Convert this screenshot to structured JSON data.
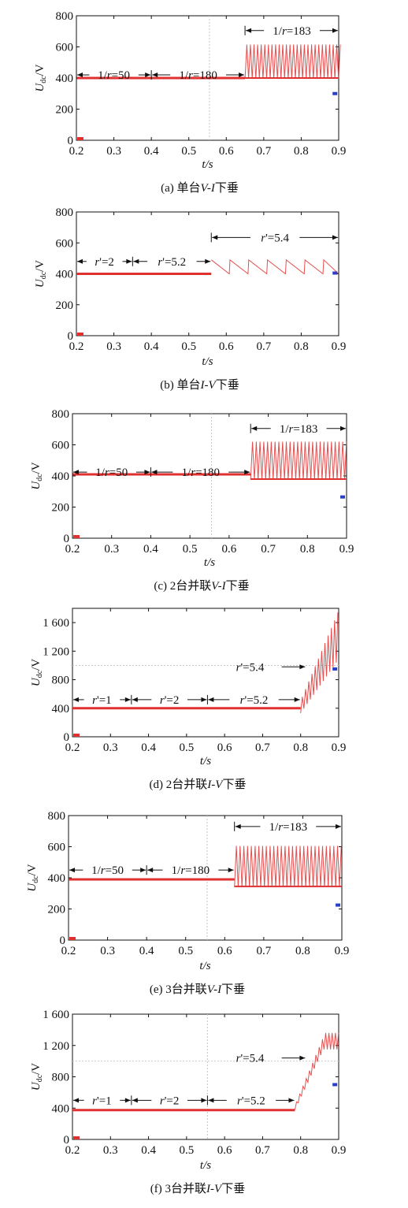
{
  "chart_data": [
    {
      "type": "line",
      "caption": "(a) 单台V-I下垂",
      "xlabel": "t/s",
      "ylabel": "Udc/V",
      "xlim": [
        0.2,
        0.9
      ],
      "ylim": [
        0,
        800
      ],
      "xticks": [
        "0.2",
        "0.3",
        "0.4",
        "0.5",
        "0.6",
        "0.7",
        "0.8",
        "0.9"
      ],
      "yticks": [
        "0",
        "200",
        "400",
        "600",
        "800"
      ],
      "series": [
        {
          "phases": [
            {
              "from": 0.2,
              "to": 0.65,
              "kind": "flat",
              "level": 400
            },
            {
              "from": 0.65,
              "to": 0.9,
              "kind": "oscillation",
              "low": 395,
              "high": 615,
              "period": 0.0096
            }
          ]
        }
      ],
      "annotations": [
        {
          "text": "1/r=50",
          "from": 0.2,
          "to": 0.4,
          "y": 420
        },
        {
          "text": "1/r=180",
          "from": 0.4,
          "to": 0.65,
          "y": 420
        },
        {
          "text": "1/r=183",
          "from": 0.65,
          "to": 0.9,
          "y": 705
        }
      ],
      "dashed_x": 0.555
    },
    {
      "type": "line",
      "caption": "(b) 单台I-V下垂",
      "xlabel": "t/s",
      "ylabel": "Udc/V",
      "xlim": [
        0.2,
        0.9
      ],
      "ylim": [
        0,
        800
      ],
      "xticks": [
        "0.2",
        "0.3",
        "0.4",
        "0.5",
        "0.6",
        "0.7",
        "0.8",
        "0.9"
      ],
      "yticks": [
        "0",
        "200",
        "400",
        "600",
        "800"
      ],
      "series": [
        {
          "phases": [
            {
              "from": 0.2,
              "to": 0.56,
              "kind": "flat",
              "level": 400
            },
            {
              "from": 0.56,
              "to": 0.9,
              "kind": "sawtooth",
              "low": 400,
              "high": 490,
              "period": 0.05
            }
          ]
        }
      ],
      "annotations": [
        {
          "text": "r'=2",
          "from": 0.2,
          "to": 0.35,
          "y": 480
        },
        {
          "text": "r'=5.2",
          "from": 0.35,
          "to": 0.56,
          "y": 480
        },
        {
          "text": "r'=5.4",
          "from": 0.56,
          "to": 0.9,
          "y": 635
        }
      ],
      "dashed_x": null
    },
    {
      "type": "line",
      "caption": "(c) 2台并联V-I下垂",
      "xlabel": "t/s",
      "ylabel": "Udc/V",
      "xlim": [
        0.2,
        0.9
      ],
      "ylim": [
        0,
        800
      ],
      "xticks": [
        "0.2",
        "0.3",
        "0.4",
        "0.5",
        "0.6",
        "0.7",
        "0.8",
        "0.9"
      ],
      "yticks": [
        "0",
        "200",
        "400",
        "600",
        "800"
      ],
      "series": [
        {
          "phases": [
            {
              "from": 0.2,
              "to": 0.655,
              "kind": "flat",
              "level": 410
            },
            {
              "from": 0.655,
              "to": 0.9,
              "kind": "oscillation",
              "low": 375,
              "high": 620,
              "period": 0.0096
            }
          ]
        }
      ],
      "annotations": [
        {
          "text": "1/r=50",
          "from": 0.2,
          "to": 0.4,
          "y": 425
        },
        {
          "text": "1/r=180",
          "from": 0.4,
          "to": 0.655,
          "y": 425
        },
        {
          "text": "1/r=183",
          "from": 0.655,
          "to": 0.9,
          "y": 705
        }
      ],
      "dashed_x": 0.555
    },
    {
      "type": "line",
      "caption": "(d) 2台并联I-V下垂",
      "xlabel": "t/s",
      "ylabel": "Udc/V",
      "xlim": [
        0.2,
        0.9
      ],
      "ylim": [
        0,
        1800
      ],
      "xticks": [
        "0.2",
        "0.3",
        "0.4",
        "0.5",
        "0.6",
        "0.7",
        "0.8",
        "0.9"
      ],
      "yticks": [
        "0",
        "400",
        "800",
        "1 200",
        "1 600"
      ],
      "series": [
        {
          "phases": [
            {
              "from": 0.2,
              "to": 0.8,
              "kind": "flat",
              "level": 400
            },
            {
              "from": 0.8,
              "to": 0.895,
              "kind": "ramp-oscillation",
              "low_start": 330,
              "low_end": 1050,
              "high_start": 560,
              "high_end": 1760,
              "period": 0.0085
            }
          ]
        }
      ],
      "annotations": [
        {
          "text": "r'=1",
          "from": 0.2,
          "to": 0.355,
          "y": 520
        },
        {
          "text": "r'=2",
          "from": 0.355,
          "to": 0.555,
          "y": 520
        },
        {
          "text": "r'=5.2",
          "from": 0.555,
          "to": 0.8,
          "y": 520
        },
        {
          "text": "r'=5.4",
          "pointer_to": 0.82,
          "from": 0.63,
          "y": 980
        }
      ],
      "dashed_x": null
    },
    {
      "type": "line",
      "caption": "(e) 3台并联V-I下垂",
      "xlabel": "t/s",
      "ylabel": "Udc/V",
      "xlim": [
        0.2,
        0.9
      ],
      "ylim": [
        0,
        800
      ],
      "xticks": [
        "0.2",
        "0.3",
        "0.4",
        "0.5",
        "0.6",
        "0.7",
        "0.8",
        "0.9"
      ],
      "yticks": [
        "0",
        "200",
        "400",
        "600",
        "800"
      ],
      "series": [
        {
          "phases": [
            {
              "from": 0.2,
              "to": 0.625,
              "kind": "flat",
              "level": 390
            },
            {
              "from": 0.625,
              "to": 0.9,
              "kind": "oscillation",
              "low": 340,
              "high": 605,
              "period": 0.0096
            }
          ]
        }
      ],
      "annotations": [
        {
          "text": "1/r=50",
          "from": 0.2,
          "to": 0.4,
          "y": 450
        },
        {
          "text": "1/r=180",
          "from": 0.4,
          "to": 0.625,
          "y": 450
        },
        {
          "text": "1/r=183",
          "from": 0.625,
          "to": 0.9,
          "y": 730
        }
      ],
      "dashed_x": 0.555
    },
    {
      "type": "line",
      "caption": "(f) 3台并联I-V下垂",
      "xlabel": "t/s",
      "ylabel": "Udc/V",
      "xlim": [
        0.2,
        0.9
      ],
      "ylim": [
        0,
        1600
      ],
      "xticks": [
        "0.2",
        "0.3",
        "0.4",
        "0.5",
        "0.6",
        "0.7",
        "0.8",
        "0.9"
      ],
      "yticks": [
        "0",
        "400",
        "800",
        "1 200",
        "1 600"
      ],
      "series": [
        {
          "phases": [
            {
              "from": 0.2,
              "to": 0.785,
              "kind": "flat",
              "level": 375
            },
            {
              "from": 0.785,
              "to": 0.9,
              "kind": "ramp-oscillation",
              "low_start": 380,
              "low_end": 1150,
              "high_start": 480,
              "high_end": 1360,
              "period": 0.0085,
              "plateau_at": 0.86
            }
          ]
        }
      ],
      "annotations": [
        {
          "text": "r'=1",
          "from": 0.2,
          "to": 0.355,
          "y": 500
        },
        {
          "text": "r'=2",
          "from": 0.355,
          "to": 0.555,
          "y": 500
        },
        {
          "text": "r'=5.2",
          "from": 0.555,
          "to": 0.785,
          "y": 500
        },
        {
          "text": "r'=5.4",
          "pointer_to": 0.82,
          "from": 0.63,
          "y": 1040
        }
      ],
      "dashed_x": 0.555
    }
  ],
  "colors": {
    "signal": "#e03030",
    "marker": "#2a3fc8",
    "axis": "#111111",
    "dashed": "#c8c8c8"
  }
}
